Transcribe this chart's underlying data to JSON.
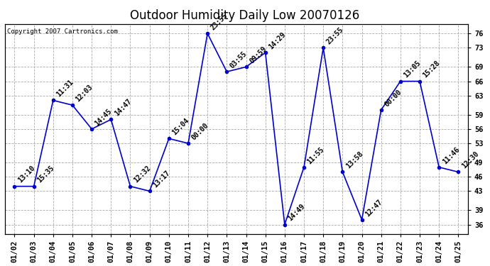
{
  "title": "Outdoor Humidity Daily Low 20070126",
  "copyright": "Copyright 2007 Cartronics.com",
  "x_labels": [
    "01/02",
    "01/03",
    "01/04",
    "01/05",
    "01/06",
    "01/07",
    "01/08",
    "01/09",
    "01/10",
    "01/11",
    "01/12",
    "01/13",
    "01/14",
    "01/15",
    "01/16",
    "01/17",
    "01/18",
    "01/19",
    "01/20",
    "01/21",
    "01/22",
    "01/23",
    "01/24",
    "01/25"
  ],
  "y_values": [
    44,
    44,
    62,
    61,
    56,
    58,
    44,
    43,
    54,
    53,
    76,
    68,
    69,
    72,
    36,
    48,
    73,
    47,
    37,
    60,
    66,
    66,
    48,
    47
  ],
  "time_labels": [
    "13:10",
    "15:35",
    "11:31",
    "12:03",
    "14:45",
    "14:47",
    "12:32",
    "13:17",
    "15:04",
    "00:00",
    "23:55",
    "03:55",
    "09:59",
    "14:29",
    "14:49",
    "11:55",
    "23:55",
    "13:58",
    "12:47",
    "00:00",
    "13:05",
    "15:28",
    "11:46",
    "12:30"
  ],
  "ylim": [
    34,
    78
  ],
  "yticks": [
    36,
    39,
    43,
    46,
    49,
    53,
    56,
    59,
    63,
    66,
    69,
    73,
    76
  ],
  "line_color": "#0000cc",
  "marker_color": "#0000cc",
  "bg_color": "#ffffff",
  "grid_color": "#aaaaaa",
  "title_fontsize": 12,
  "label_fontsize": 7,
  "tick_fontsize": 7.5,
  "copyright_fontsize": 6.5
}
